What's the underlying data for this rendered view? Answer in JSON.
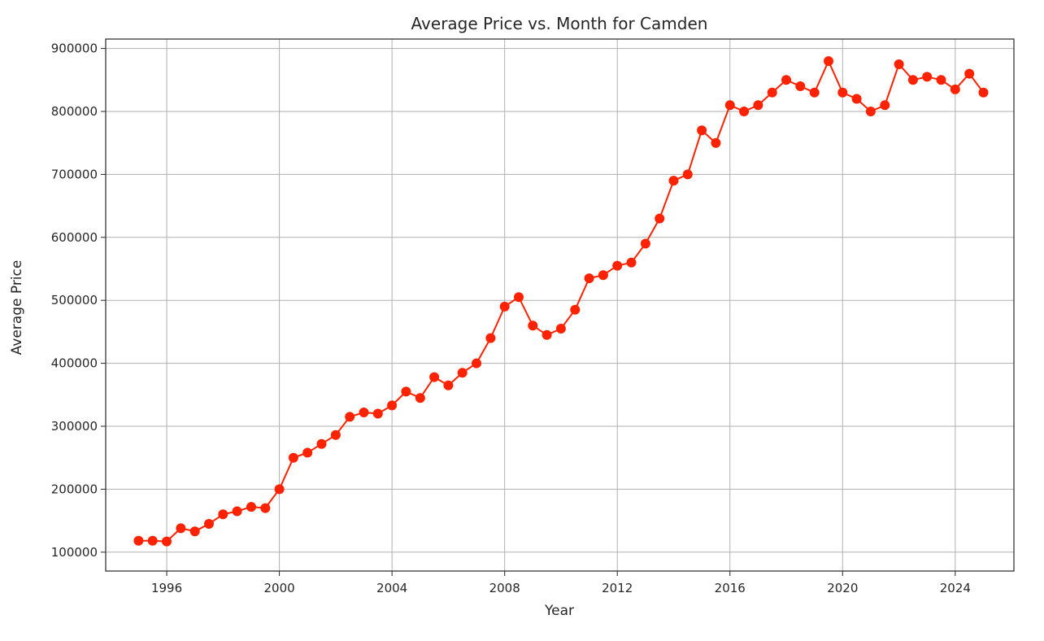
{
  "chart_data": {
    "type": "line",
    "title": "Average Price vs. Month for Camden",
    "xlabel": "Year",
    "ylabel": "Average Price",
    "xlim": [
      "1993-11",
      "2026-02"
    ],
    "ylim": [
      70000,
      915000
    ],
    "x_ticks": [
      "1996",
      "2000",
      "2004",
      "2008",
      "2012",
      "2016",
      "2020",
      "2024"
    ],
    "y_ticks": [
      "100000",
      "200000",
      "300000",
      "400000",
      "500000",
      "600000",
      "700000",
      "800000",
      "900000"
    ],
    "grid": true,
    "line_color": "#ff2200",
    "marker": "circle",
    "series": [
      {
        "x": [
          "1995-01",
          "1995-07",
          "1996-01",
          "1996-07",
          "1997-01",
          "1997-07",
          "1998-01",
          "1998-07",
          "1999-01",
          "1999-07",
          "2000-01",
          "2000-07",
          "2001-01",
          "2001-07",
          "2002-01",
          "2002-07",
          "2003-01",
          "2003-07",
          "2004-01",
          "2004-07",
          "2005-01",
          "2005-07",
          "2006-01",
          "2006-07",
          "2007-01",
          "2007-07",
          "2008-01",
          "2008-07",
          "2009-01",
          "2009-07",
          "2010-01",
          "2010-07",
          "2011-01",
          "2011-07",
          "2012-01",
          "2012-07",
          "2013-01",
          "2013-07",
          "2014-01",
          "2014-07",
          "2015-01",
          "2015-07",
          "2016-01",
          "2016-07",
          "2017-01",
          "2017-07",
          "2018-01",
          "2018-07",
          "2019-01",
          "2019-07",
          "2020-01",
          "2020-07",
          "2021-01",
          "2021-07",
          "2022-01",
          "2022-07",
          "2023-01",
          "2023-07",
          "2024-01",
          "2024-07",
          "2025-01"
        ],
        "y": [
          118000,
          118000,
          117000,
          138000,
          133000,
          145000,
          160000,
          165000,
          172000,
          170000,
          200000,
          250000,
          258000,
          272000,
          286000,
          315000,
          322000,
          320000,
          333000,
          355000,
          345000,
          378000,
          365000,
          385000,
          400000,
          440000,
          490000,
          505000,
          460000,
          445000,
          455000,
          485000,
          535000,
          540000,
          555000,
          560000,
          590000,
          630000,
          690000,
          700000,
          770000,
          750000,
          810000,
          800000,
          810000,
          830000,
          850000,
          840000,
          830000,
          880000,
          830000,
          820000,
          800000,
          810000,
          875000,
          850000,
          855000,
          850000,
          835000,
          860000,
          830000
        ]
      }
    ]
  }
}
